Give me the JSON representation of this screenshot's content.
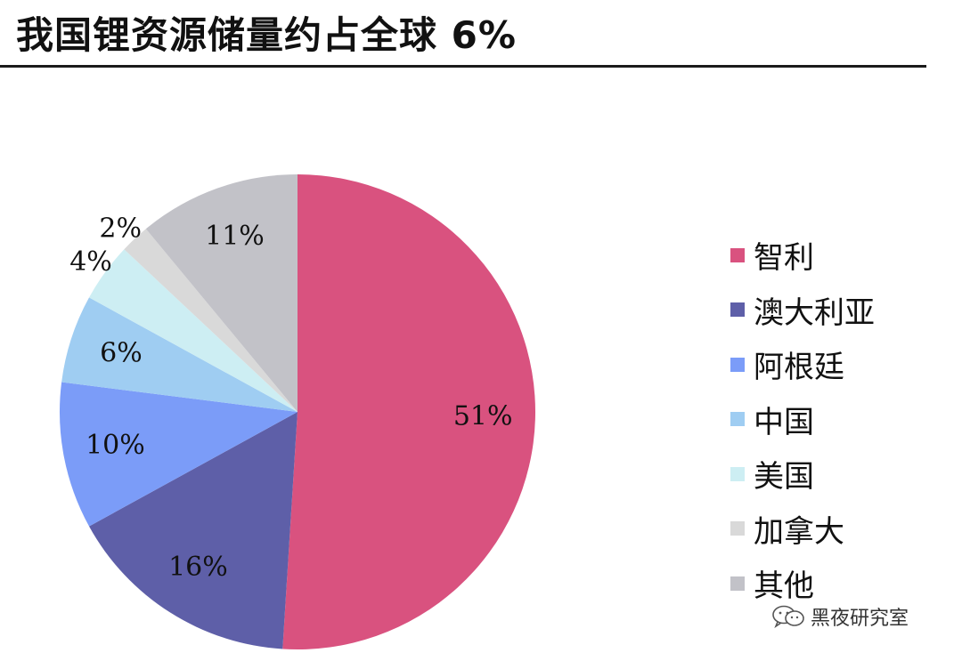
{
  "title": "我国锂资源储量约占全球 6%",
  "watermark": "黑夜研究室",
  "chart_data": {
    "type": "pie",
    "title": "",
    "legend_position": "right",
    "categories": [
      "智利",
      "澳大利亚",
      "阿根廷",
      "中国",
      "美国",
      "加拿大",
      "其他"
    ],
    "values": [
      51,
      16,
      10,
      6,
      4,
      2,
      11
    ],
    "labels": [
      "51%",
      "16%",
      "10%",
      "6%",
      "4%",
      "2%",
      "11%"
    ],
    "colors": [
      "#d9527f",
      "#5e5fa8",
      "#7b9cf8",
      "#9fcdf2",
      "#cdeef3",
      "#d9d9d9",
      "#c2c2c8"
    ],
    "start_angle": "12 o'clock",
    "direction": "clockwise"
  }
}
